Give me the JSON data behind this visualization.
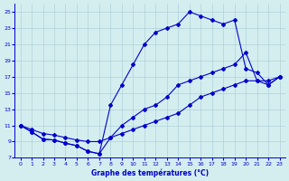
{
  "title": "Graphe des températures (°C)",
  "bg_color": "#d4eef0",
  "grid_color": "#b0d0d8",
  "line_color": "#0000cc",
  "xlim": [
    -0.5,
    23.5
  ],
  "ylim": [
    7,
    26
  ],
  "xticks": [
    0,
    1,
    2,
    3,
    4,
    5,
    6,
    7,
    8,
    9,
    10,
    11,
    12,
    13,
    14,
    15,
    16,
    17,
    18,
    19,
    20,
    21,
    22,
    23
  ],
  "yticks": [
    7,
    9,
    11,
    13,
    15,
    17,
    19,
    21,
    23,
    25
  ],
  "line1_x": [
    0,
    1,
    2,
    3,
    4,
    5,
    6,
    7,
    8,
    9,
    10,
    11,
    12,
    13,
    14,
    15,
    16,
    17,
    18,
    19,
    20,
    21,
    22,
    23
  ],
  "line1_y": [
    11,
    10.2,
    9.3,
    9.2,
    8.8,
    8.5,
    7.8,
    7.5,
    9.5,
    11,
    12,
    13,
    13.5,
    14.5,
    16,
    16.5,
    17,
    17.5,
    18,
    18.5,
    20,
    16.5,
    16,
    17
  ],
  "line2_x": [
    0,
    1,
    2,
    3,
    4,
    5,
    6,
    7,
    8,
    9,
    10,
    11,
    12,
    13,
    14,
    15,
    16,
    17,
    18,
    19,
    20,
    21,
    22,
    23
  ],
  "line2_y": [
    11,
    10.2,
    9.3,
    9.2,
    8.8,
    8.5,
    7.8,
    7.5,
    13.5,
    16,
    18.5,
    21,
    22.5,
    23,
    23.5,
    25,
    24.5,
    24,
    23.5,
    24,
    18,
    17.5,
    16,
    17
  ],
  "line3_x": [
    0,
    1,
    2,
    3,
    4,
    5,
    6,
    7,
    8,
    9,
    10,
    11,
    12,
    13,
    14,
    15,
    16,
    17,
    18,
    19,
    20,
    21,
    22,
    23
  ],
  "line3_y": [
    11,
    10.5,
    10,
    9.8,
    9.5,
    9.2,
    9.0,
    9.0,
    9.5,
    10,
    10.5,
    11,
    11.5,
    12,
    12.5,
    13.5,
    14.5,
    15,
    15.5,
    16,
    16.5,
    16.5,
    16.5,
    17
  ]
}
